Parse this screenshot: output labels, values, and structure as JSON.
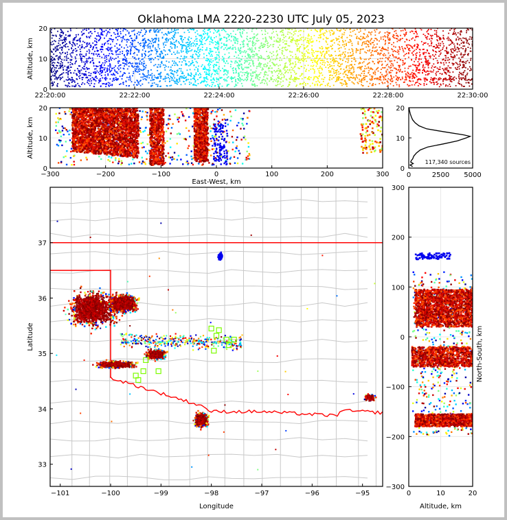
{
  "chart_data": [
    {
      "id": "time-altitude",
      "type": "scatter",
      "title": "Oklahoma LMA 2220-2230 UTC July 05, 2023",
      "xlabel": "",
      "ylabel": "Altitude, km",
      "xlim": [
        "22:20:00",
        "22:30:00"
      ],
      "ylim": [
        0,
        20
      ],
      "xticks": [
        "22:20:00",
        "22:22:00",
        "22:24:00",
        "22:26:00",
        "22:28:00",
        "22:30:00"
      ],
      "yticks": [
        0,
        10,
        20
      ],
      "colormap": "jet (by time)",
      "grid": true
    },
    {
      "id": "east-west-altitude",
      "type": "scatter",
      "xlabel": "East-West, km",
      "ylabel": "Altitude, km",
      "xlim": [
        -300,
        300
      ],
      "ylim": [
        0,
        20
      ],
      "xticks": [
        -300,
        -200,
        -100,
        0,
        100,
        200,
        300
      ],
      "yticks": [
        0,
        10,
        20
      ],
      "clusters": [
        {
          "x_range": [
            -260,
            -140
          ],
          "alt_range": [
            3,
            20
          ]
        },
        {
          "x_range": [
            -120,
            -95
          ],
          "alt_range": [
            1,
            20
          ]
        },
        {
          "x_range": [
            -40,
            -15
          ],
          "alt_range": [
            2,
            20
          ]
        },
        {
          "x_range": [
            260,
            300
          ],
          "alt_range": [
            5,
            20
          ]
        }
      ],
      "grid": true
    },
    {
      "id": "altitude-histogram",
      "type": "line",
      "xlabel": "",
      "ylabel": "",
      "xlim": [
        0,
        5000
      ],
      "ylim": [
        0,
        20
      ],
      "xticks": [
        0,
        2500,
        5000
      ],
      "yticks": [
        0,
        10,
        20
      ],
      "annotation": "117,340 sources",
      "series": [
        {
          "name": "source count",
          "alt": [
            0.5,
            1,
            1.5,
            2,
            2.5,
            3,
            4,
            5,
            6,
            7,
            8,
            9,
            10,
            10.5,
            11,
            12,
            13,
            14,
            15,
            16,
            17,
            18,
            19,
            20
          ],
          "count": [
            300,
            100,
            350,
            150,
            200,
            300,
            400,
            600,
            900,
            1500,
            2700,
            3800,
            4500,
            4800,
            4300,
            2800,
            1400,
            800,
            500,
            300,
            200,
            120,
            60,
            20
          ]
        }
      ]
    },
    {
      "id": "plan-view-map",
      "type": "scatter",
      "xlabel": "Longitude",
      "ylabel": "Latitude",
      "xlim": [
        -101.2,
        -94.6
      ],
      "ylim": [
        32.6,
        38.0
      ],
      "xticks": [
        -101,
        -100,
        -99,
        -98,
        -97,
        -96,
        -95
      ],
      "yticks": [
        33,
        34,
        35,
        36,
        37
      ],
      "clusters": [
        {
          "lon": -100.35,
          "lat": 35.8,
          "spread_lon": 0.45,
          "spread_lat": 0.3
        },
        {
          "lon": -99.75,
          "lat": 35.9,
          "spread_lon": 0.25,
          "spread_lat": 0.15
        },
        {
          "lon": -99.9,
          "lat": 34.8,
          "spread_lon": 0.35,
          "spread_lat": 0.06
        },
        {
          "lon": -99.1,
          "lat": 34.98,
          "spread_lon": 0.18,
          "spread_lat": 0.08
        },
        {
          "lon": -98.2,
          "lat": 33.8,
          "spread_lon": 0.12,
          "spread_lat": 0.12
        },
        {
          "lon": -97.82,
          "lat": 36.75,
          "spread_lon": 0.04,
          "spread_lat": 0.06
        },
        {
          "lon": -94.85,
          "lat": 34.2,
          "spread_lon": 0.1,
          "spread_lat": 0.06
        }
      ],
      "stations_color": "#7cfc00",
      "state_border_color": "#ff0000",
      "county_color": "#c8c8c8"
    },
    {
      "id": "altitude-north-south",
      "type": "scatter",
      "xlabel": "Altitude, km",
      "ylabel": "North-South, km",
      "xlim": [
        0,
        20
      ],
      "ylim": [
        -300,
        300
      ],
      "xticks": [
        0,
        10,
        20
      ],
      "yticks": [
        -300,
        -200,
        -100,
        0,
        100,
        200,
        300
      ],
      "clusters": [
        {
          "ns_range": [
            20,
            95
          ],
          "alt_range": [
            2,
            20
          ]
        },
        {
          "ns_range": [
            -60,
            -20
          ],
          "alt_range": [
            1,
            20
          ]
        },
        {
          "ns_range": [
            -180,
            -155
          ],
          "alt_range": [
            2,
            20
          ]
        },
        {
          "ns_range": [
            155,
            168
          ],
          "alt_range": [
            2,
            13
          ]
        }
      ],
      "grid": true
    }
  ]
}
